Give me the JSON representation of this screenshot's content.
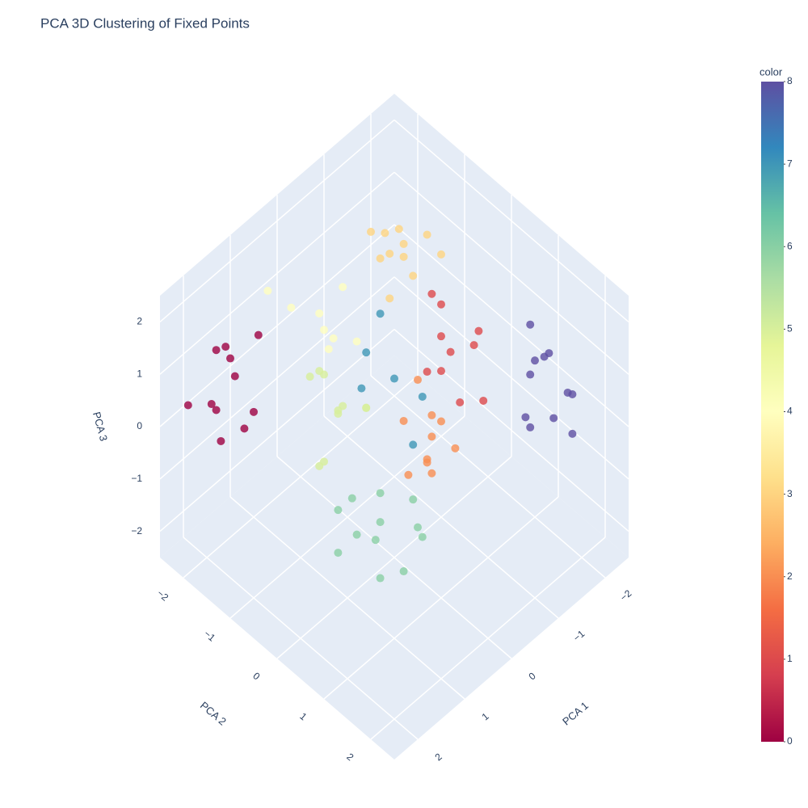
{
  "chart_data": {
    "type": "scatter3d",
    "title": "PCA 3D Clustering of Fixed Points",
    "x_label": "PCA 1",
    "y_label": "PCA 2",
    "z_label": "PCA 3",
    "xlim": [
      -2.5,
      2.5
    ],
    "ylim": [
      -2.5,
      2.5
    ],
    "zlim": [
      -2.5,
      2.5
    ],
    "xticks": [
      {
        "value": -2,
        "label": "−2"
      },
      {
        "value": -1,
        "label": "−1"
      },
      0,
      1,
      2
    ],
    "yticks": [
      {
        "value": -2,
        "label": "−2"
      },
      {
        "value": -1,
        "label": "−1"
      },
      0,
      1,
      2
    ],
    "zticks": [
      {
        "value": -2,
        "label": "−2"
      },
      {
        "value": -1,
        "label": "−1"
      },
      0,
      1,
      2
    ],
    "grid": true,
    "x": [
      1.2,
      1.8,
      1.5,
      0.9,
      2.0,
      1.3,
      1.6,
      1.1,
      1.9,
      1.4,
      0.8,
      -2.3,
      -2.0,
      -2.4,
      -1.8,
      -2.2,
      -2.1,
      -1.9,
      -2.4,
      -2.0,
      -2.3,
      -1.7,
      0.1,
      0.5,
      -0.3,
      0.3,
      0.8,
      -0.1,
      0.6,
      0.0,
      0.4,
      -0.4,
      0.2,
      0.7,
      -1.0,
      -0.7,
      -1.3,
      -0.9,
      -1.2,
      -0.6,
      -1.1,
      -0.8,
      -1.4,
      -0.5,
      -1.0,
      -1.2,
      -1.5,
      -0.9,
      -1.3,
      -1.0,
      -1.6,
      -1.1,
      -1.4,
      -0.8,
      -1.2,
      -0.6,
      -0.3,
      -0.9,
      -0.5,
      -0.2,
      -0.8,
      -0.4,
      -0.7,
      -0.1,
      -0.6,
      0.4,
      0.7,
      0.1,
      0.5,
      0.9,
      0.2,
      0.6,
      0.3,
      0.0,
      0.8,
      0.2,
      0.6,
      -0.2,
      0.4,
      0.9,
      0.0,
      0.5,
      -0.4,
      -0.4,
      -0.1,
      -0.8,
      -0.3,
      0.2,
      -0.6
    ],
    "y": [
      -2.4,
      -2.1,
      -2.3,
      -2.0,
      -2.4,
      -1.9,
      -2.2,
      -2.4,
      -1.8,
      -2.0,
      -2.2,
      1.0,
      1.4,
      0.8,
      1.2,
      1.6,
      0.7,
      1.0,
      1.3,
      0.9,
      1.5,
      1.2,
      -0.2,
      0.1,
      0.2,
      -0.6,
      -0.4,
      0.5,
      0.3,
      -0.3,
      -0.8,
      0.0,
      0.4,
      -0.1,
      -0.8,
      -1.0,
      -0.6,
      -0.5,
      -1.1,
      -0.7,
      -0.9,
      -1.3,
      -0.4,
      -0.6,
      -1.2,
      0.0,
      0.3,
      -0.2,
      -0.3,
      0.4,
      0.1,
      -0.1,
      0.5,
      0.2,
      -0.4,
      0.2,
      -0.1,
      0.4,
      0.5,
      0.1,
      0.0,
      0.3,
      -0.2,
      0.6,
      0.2,
      -0.8,
      -0.5,
      -1.0,
      -1.1,
      -0.7,
      -0.4,
      -0.9,
      -1.2,
      -0.6,
      -1.0,
      -1.3,
      -1.6,
      -1.0,
      -0.9,
      -1.8,
      -1.4,
      -1.1,
      -1.5,
      -0.4,
      -0.7,
      -0.2,
      0.1,
      -0.5,
      -0.9
    ],
    "z": [
      0.6,
      0.2,
      -0.3,
      0.9,
      0.1,
      -0.5,
      1.0,
      0.3,
      -0.2,
      0.5,
      -0.8,
      0.4,
      -0.3,
      0.1,
      0.8,
      -0.6,
      -0.9,
      0.3,
      -0.2,
      1.1,
      0.0,
      -0.4,
      -1.9,
      -1.7,
      -2.0,
      -1.6,
      -2.1,
      -1.8,
      -2.2,
      -1.5,
      -1.9,
      -1.7,
      -2.3,
      -1.6,
      2.1,
      1.9,
      2.2,
      1.8,
      2.0,
      2.3,
      1.7,
      2.1,
      1.9,
      1.6,
      2.0,
      0.5,
      0.9,
      0.2,
      1.1,
      0.0,
      0.4,
      0.8,
      -0.2,
      0.6,
      1.3,
      -0.5,
      -0.2,
      -0.8,
      0.1,
      -1.0,
      -0.4,
      -0.7,
      0.2,
      -0.3,
      -1.2,
      0.0,
      0.4,
      -0.3,
      0.6,
      -0.6,
      0.2,
      -0.9,
      0.3,
      -0.1,
      0.8,
      1.0,
      1.5,
      0.7,
      1.3,
      1.9,
      0.4,
      1.7,
      1.2,
      0.3,
      0.8,
      -0.2,
      -0.5,
      0.5,
      1.0
    ],
    "color": [
      0,
      0,
      0,
      0,
      0,
      0,
      0,
      0,
      0,
      0,
      0,
      8,
      8,
      8,
      8,
      8,
      8,
      8,
      8,
      8,
      8,
      8,
      6,
      6,
      6,
      6,
      6,
      6,
      6,
      6,
      6,
      6,
      6,
      6,
      3,
      3,
      3,
      3,
      3,
      3,
      3,
      3,
      3,
      3,
      3,
      1,
      1,
      1,
      1,
      1,
      1,
      1,
      1,
      1,
      1,
      2,
      2,
      2,
      2,
      2,
      2,
      2,
      2,
      2,
      2,
      5,
      5,
      5,
      5,
      5,
      5,
      5,
      5,
      5,
      5,
      4,
      4,
      4,
      4,
      4,
      4,
      4,
      4,
      7,
      7,
      7,
      7,
      7,
      7
    ],
    "colorbar": {
      "title": "color",
      "lim": [
        0,
        8
      ],
      "ticks": [
        0,
        1,
        2,
        3,
        4,
        5,
        6,
        7,
        8
      ],
      "colorscale": [
        "#9e0142",
        "#d53e4f",
        "#f46d43",
        "#fdae61",
        "#fee08b",
        "#ffffbf",
        "#e6f598",
        "#abdda4",
        "#66c2a5",
        "#3288bd",
        "#5e4fa2"
      ]
    }
  }
}
